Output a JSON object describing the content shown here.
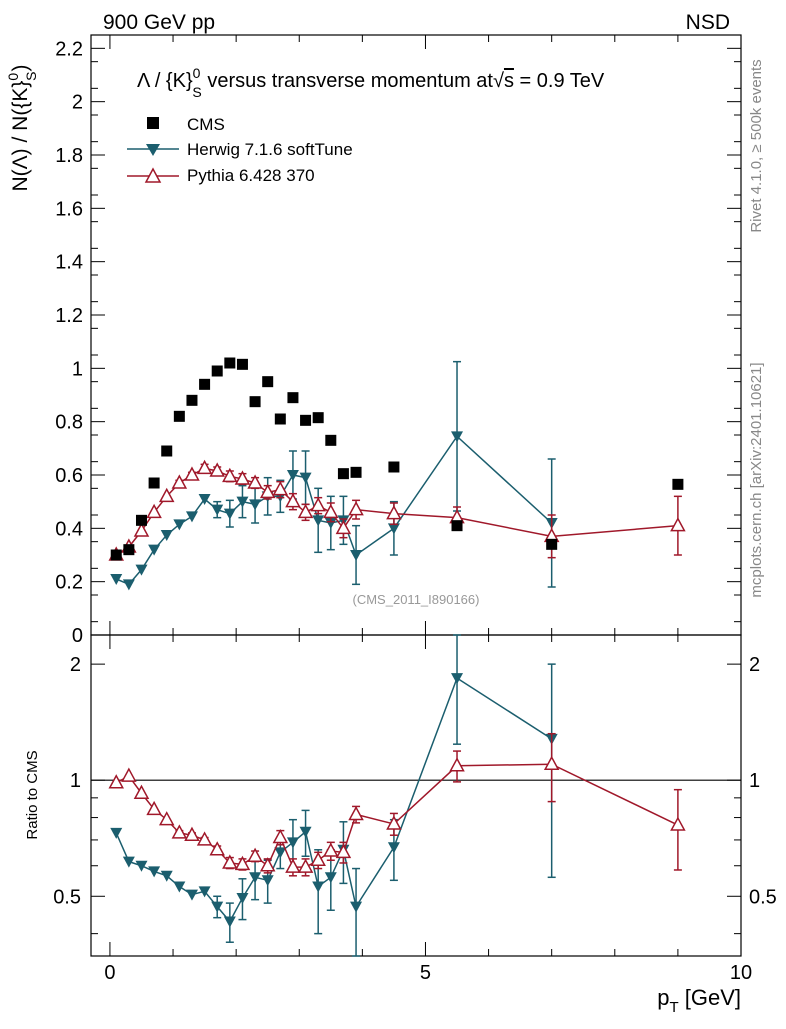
{
  "header": {
    "left": "900 GeV pp",
    "right": "NSD"
  },
  "side_labels": {
    "rivet": "Rivet 4.1.0, ≥ 500k events",
    "mcplots": "mcplots.cern.ch [arXiv:2401.10621]"
  },
  "chart_data": {
    "type": "scatter",
    "title_parts": {
      "lambda": "Λ / {K}",
      "k_sup": "0",
      "k_sub": "S",
      "rest": " versus transverse momentum at",
      "sqrt": "√",
      "s": "s",
      "eq": " = 0.9 TeV"
    },
    "ylabel_parts": {
      "num": "N(Λ)  /  N({K}",
      "sup": "0",
      "sub": "S",
      "close": ")"
    },
    "xlabel_parts": {
      "p": "p",
      "sub": "T",
      "unit": " [GeV]"
    },
    "ratio_ylabel": "Ratio to CMS",
    "watermark": "(CMS_2011_I890166)",
    "xlim": [
      -0.3,
      10.0
    ],
    "main_ylim": [
      0,
      2.25
    ],
    "ratio_ylim": [
      0.35,
      2.38
    ],
    "ratio_ylog": true,
    "xticks": [
      0,
      5,
      10
    ],
    "xtick_labels": [
      "0",
      "5",
      "10"
    ],
    "main_yticks": [
      0,
      0.2,
      0.4,
      0.6,
      0.8,
      1,
      1.2,
      1.4,
      1.6,
      1.8,
      2,
      2.2
    ],
    "main_ytick_labels": [
      "0",
      "0.2",
      "0.4",
      "0.6",
      "0.8",
      "1",
      "1.2",
      "1.4",
      "1.6",
      "1.8",
      "2",
      "2.2"
    ],
    "ratio_yticks": [
      0.5,
      1,
      2
    ],
    "ratio_ytick_labels": [
      "0.5",
      "1",
      "2"
    ],
    "legend_position": "top-left",
    "series": [
      {
        "name": "CMS",
        "color": "#000000",
        "marker": "square",
        "x": [
          0.1,
          0.3,
          0.5,
          0.7,
          0.9,
          1.1,
          1.3,
          1.5,
          1.7,
          1.9,
          2.1,
          2.3,
          2.5,
          2.7,
          2.9,
          3.1,
          3.3,
          3.5,
          3.7,
          3.9,
          4.5,
          5.5,
          7.0,
          9.0
        ],
        "y": [
          0.3,
          0.32,
          0.43,
          0.57,
          0.69,
          0.82,
          0.88,
          0.94,
          0.99,
          1.02,
          1.015,
          0.875,
          0.95,
          0.81,
          0.89,
          0.805,
          0.815,
          0.73,
          0.605,
          0.61,
          0.63,
          0.41,
          0.34,
          0.565
        ]
      },
      {
        "name": "Herwig 7.1.6 softTune",
        "color": "#1b5e6e",
        "marker": "triangle-down",
        "x": [
          0.1,
          0.3,
          0.5,
          0.7,
          0.9,
          1.1,
          1.3,
          1.5,
          1.7,
          1.9,
          2.1,
          2.3,
          2.5,
          2.7,
          2.9,
          3.1,
          3.3,
          3.5,
          3.7,
          3.9,
          4.5,
          5.5,
          7.0
        ],
        "y": [
          0.21,
          0.19,
          0.245,
          0.32,
          0.375,
          0.415,
          0.445,
          0.51,
          0.47,
          0.455,
          0.5,
          0.49,
          0.52,
          0.52,
          0.6,
          0.59,
          0.43,
          0.42,
          0.43,
          0.3,
          0.4,
          0.745,
          0.42
        ],
        "err": [
          0,
          0,
          0,
          0,
          0,
          0,
          0,
          0,
          0.03,
          0.05,
          0.06,
          0.07,
          0.07,
          0.06,
          0.09,
          0.1,
          0.12,
          0.1,
          0.09,
          0.11,
          0.1,
          0.28,
          0.24
        ],
        "ratio": [
          0.73,
          0.615,
          0.6,
          0.58,
          0.565,
          0.53,
          0.505,
          0.515,
          0.47,
          0.43,
          0.495,
          0.56,
          0.55,
          0.65,
          0.69,
          0.735,
          0.53,
          0.56,
          0.66,
          0.47,
          0.67,
          1.84,
          1.28
        ],
        "ratio_err": [
          0,
          0,
          0,
          0,
          0,
          0,
          0,
          0,
          0.03,
          0.05,
          0.06,
          0.07,
          0.07,
          0.06,
          0.1,
          0.1,
          0.13,
          0.1,
          0.12,
          0.12,
          0.12,
          0.6,
          0.72
        ]
      },
      {
        "name": "Pythia 6.428 370",
        "color": "#a0182a",
        "marker": "triangle-up-open",
        "x": [
          0.1,
          0.3,
          0.5,
          0.7,
          0.9,
          1.1,
          1.3,
          1.5,
          1.7,
          1.9,
          2.1,
          2.3,
          2.5,
          2.7,
          2.9,
          3.1,
          3.3,
          3.5,
          3.7,
          3.9,
          4.5,
          5.5,
          7.0,
          9.0
        ],
        "y": [
          0.3,
          0.33,
          0.39,
          0.46,
          0.52,
          0.57,
          0.6,
          0.625,
          0.615,
          0.595,
          0.585,
          0.57,
          0.535,
          0.545,
          0.5,
          0.46,
          0.485,
          0.46,
          0.4,
          0.47,
          0.455,
          0.44,
          0.37,
          0.41
        ],
        "err": [
          0,
          0,
          0,
          0,
          0,
          0.01,
          0.01,
          0.015,
          0.015,
          0.02,
          0.02,
          0.02,
          0.025,
          0.03,
          0.03,
          0.03,
          0.03,
          0.035,
          0.035,
          0.035,
          0.04,
          0.04,
          0.08,
          0.11
        ],
        "ratio": [
          0.985,
          1.025,
          0.925,
          0.84,
          0.79,
          0.73,
          0.72,
          0.7,
          0.66,
          0.61,
          0.605,
          0.635,
          0.6,
          0.71,
          0.595,
          0.595,
          0.62,
          0.655,
          0.65,
          0.815,
          0.77,
          1.09,
          1.1,
          0.765
        ],
        "ratio_err": [
          0,
          0,
          0,
          0,
          0,
          0.01,
          0.01,
          0.01,
          0.015,
          0.02,
          0.02,
          0.02,
          0.025,
          0.03,
          0.03,
          0.03,
          0.03,
          0.035,
          0.04,
          0.04,
          0.05,
          0.1,
          0.22,
          0.18
        ]
      }
    ]
  }
}
